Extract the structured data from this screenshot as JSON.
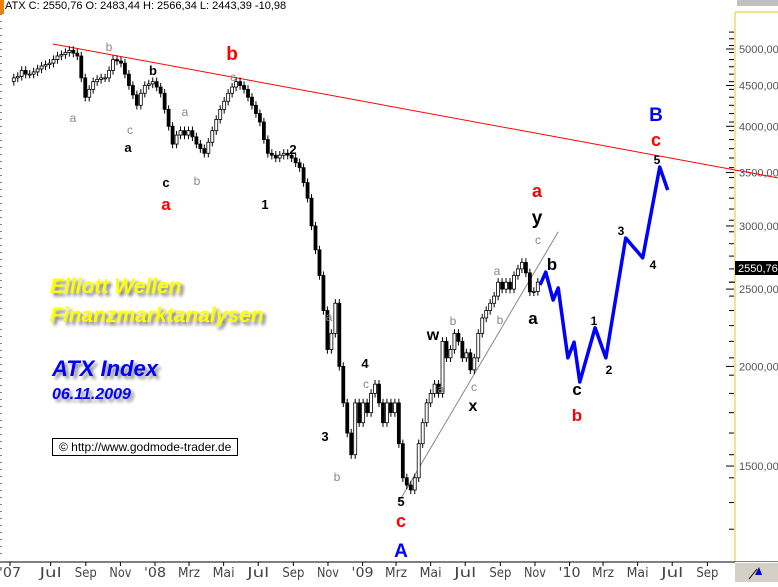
{
  "header": {
    "text": "ATX C: 2550,76 O: 2483,44 H: 2566,34 L: 2443,39 -10,98"
  },
  "titles": {
    "line1": "Elliott Wellen",
    "line2": "Finanzmarktanalysen",
    "index": "ATX Index",
    "date": "06.11.2009",
    "copyright": "© http://www.godmode-trader.de"
  },
  "colors": {
    "trendline": "#ff0000",
    "projection": "#0000ff",
    "axis": "#f0c020",
    "support": "#888888"
  },
  "chart_data": {
    "type": "candlestick",
    "yscale": "log",
    "ylim": [
      1200,
      5400
    ],
    "y_ticks": [
      "1500,00",
      "2000,00",
      "2500,00",
      "3000,00",
      "3500,00",
      "4000,00",
      "4500,00",
      "5000,00"
    ],
    "y_tick_values": [
      1500,
      2000,
      2500,
      3000,
      3500,
      4000,
      4500,
      5000
    ],
    "last_price_label": "2550,76",
    "last_price": 2550.76,
    "x_ticks": [
      {
        "label": "'07",
        "date": "2007-04-10"
      },
      {
        "label": "Jul",
        "date": "2007-07-01"
      },
      {
        "label": "Sep",
        "date": "2007-09-01"
      },
      {
        "label": "Nov",
        "date": "2007-11-01"
      },
      {
        "label": "'08",
        "date": "2008-01-01"
      },
      {
        "label": "Mrz",
        "date": "2008-03-01"
      },
      {
        "label": "Mai",
        "date": "2008-05-01"
      },
      {
        "label": "Jul",
        "date": "2008-07-01"
      },
      {
        "label": "Sep",
        "date": "2008-09-01"
      },
      {
        "label": "Nov",
        "date": "2008-11-01"
      },
      {
        "label": "'09",
        "date": "2009-01-01"
      },
      {
        "label": "Mrz",
        "date": "2009-03-01"
      },
      {
        "label": "Mai",
        "date": "2009-05-01"
      },
      {
        "label": "Jul",
        "date": "2009-07-01"
      },
      {
        "label": "Sep",
        "date": "2009-09-01"
      },
      {
        "label": "Nov",
        "date": "2009-11-01"
      },
      {
        "label": "'10",
        "date": "2010-01-01"
      },
      {
        "label": "Mrz",
        "date": "2010-03-01"
      },
      {
        "label": "Mai",
        "date": "2010-05-01"
      },
      {
        "label": "Jul",
        "date": "2010-07-01"
      },
      {
        "label": "Sep",
        "date": "2010-09-01"
      }
    ],
    "weekly_last_date": "2009-11-06",
    "weekly_closes": [
      4600,
      4620,
      4700,
      4650,
      4650,
      4680,
      4720,
      4760,
      4780,
      4800,
      4850,
      4900,
      4920,
      4950,
      4980,
      4940,
      4900,
      4600,
      4350,
      4450,
      4550,
      4580,
      4600,
      4600,
      4700,
      4850,
      4830,
      4800,
      4650,
      4500,
      4380,
      4250,
      4400,
      4500,
      4520,
      4550,
      4480,
      4400,
      4200,
      4000,
      3800,
      3900,
      3950,
      3900,
      3950,
      3880,
      3800,
      3750,
      3700,
      3820,
      3950,
      4080,
      4200,
      4300,
      4400,
      4480,
      4550,
      4500,
      4450,
      4350,
      4250,
      4150,
      4050,
      3850,
      3700,
      3680,
      3650,
      3680,
      3700,
      3680,
      3650,
      3600,
      3550,
      3400,
      3250,
      3000,
      2800,
      2600,
      2350,
      2100,
      2200,
      2400,
      2000,
      1800,
      1650,
      1550,
      1800,
      1700,
      1800,
      1750,
      1850,
      1900,
      1800,
      1700,
      1800,
      1750,
      1800,
      1600,
      1450,
      1420,
      1400,
      1450,
      1600,
      1700,
      1800,
      1850,
      1900,
      1850,
      2150,
      2050,
      2100,
      2200,
      2150,
      2050,
      2080,
      1980,
      2050,
      2200,
      2300,
      2350,
      2400,
      2450,
      2550,
      2500,
      2550,
      2500,
      2600,
      2650,
      2700,
      2620,
      2480,
      2483.44,
      2550.76
    ],
    "trendlines": [
      {
        "color": "red",
        "points": [
          [
            "2007-07-05",
            5073
          ],
          [
            "2011-01-03",
            3447
          ]
        ]
      },
      {
        "color": "gray",
        "points": [
          [
            "2009-03-08",
            1360
          ],
          [
            "2009-12-12",
            2950
          ]
        ]
      }
    ],
    "projection": [
      [
        "2009-11-10",
        2530
      ],
      [
        "2009-11-20",
        2626
      ],
      [
        "2009-12-03",
        2422
      ],
      [
        "2009-12-12",
        2508
      ],
      [
        "2009-12-29",
        2050
      ],
      [
        "2010-01-09",
        2145
      ],
      [
        "2010-01-19",
        1912
      ],
      [
        "2010-02-15",
        2236
      ],
      [
        "2010-03-06",
        2050
      ],
      [
        "2010-04-10",
        2897
      ],
      [
        "2010-05-10",
        2736
      ],
      [
        "2010-06-09",
        3556
      ],
      [
        "2010-06-23",
        3328
      ]
    ],
    "wave_labels": [
      {
        "t": "b",
        "c": "gray"
      },
      {
        "t": "a",
        "c": "gray"
      },
      {
        "t": "c",
        "c": "gray"
      },
      {
        "t": "a",
        "c": "gray"
      },
      {
        "t": "b",
        "c": "gray"
      },
      {
        "t": "c",
        "c": "gray"
      },
      {
        "t": "a",
        "c": "gray"
      },
      {
        "t": "c",
        "c": "gray"
      },
      {
        "t": "b",
        "c": "gray"
      },
      {
        "t": "a",
        "c": "gray"
      },
      {
        "t": "b",
        "c": "gray"
      },
      {
        "t": "c",
        "c": "gray"
      },
      {
        "t": "a",
        "c": "gray"
      },
      {
        "t": "b",
        "c": "gray"
      },
      {
        "t": "c",
        "c": "gray"
      },
      {
        "t": "b",
        "c": "black"
      },
      {
        "t": "a",
        "c": "black"
      },
      {
        "t": "c",
        "c": "black"
      },
      {
        "t": "1",
        "c": "black"
      },
      {
        "t": "2",
        "c": "black"
      },
      {
        "t": "4",
        "c": "black"
      },
      {
        "t": "3",
        "c": "black"
      },
      {
        "t": "5",
        "c": "black"
      },
      {
        "t": "w",
        "c": "black"
      },
      {
        "t": "x",
        "c": "black"
      },
      {
        "t": "y",
        "c": "black"
      },
      {
        "t": "a",
        "c": "black"
      },
      {
        "t": "b",
        "c": "black"
      },
      {
        "t": "a",
        "c": "red"
      },
      {
        "t": "b",
        "c": "red"
      },
      {
        "t": "a",
        "c": "red"
      },
      {
        "t": "c",
        "c": "red"
      },
      {
        "t": "b",
        "c": "red"
      },
      {
        "t": "c",
        "c": "red"
      },
      {
        "t": "A",
        "c": "blue"
      },
      {
        "t": "B",
        "c": "blue"
      },
      {
        "t": "c",
        "c": "black"
      },
      {
        "t": "1",
        "c": "black"
      },
      {
        "t": "2",
        "c": "black"
      },
      {
        "t": "3",
        "c": "black"
      },
      {
        "t": "4",
        "c": "black"
      },
      {
        "t": "5",
        "c": "black"
      }
    ]
  }
}
